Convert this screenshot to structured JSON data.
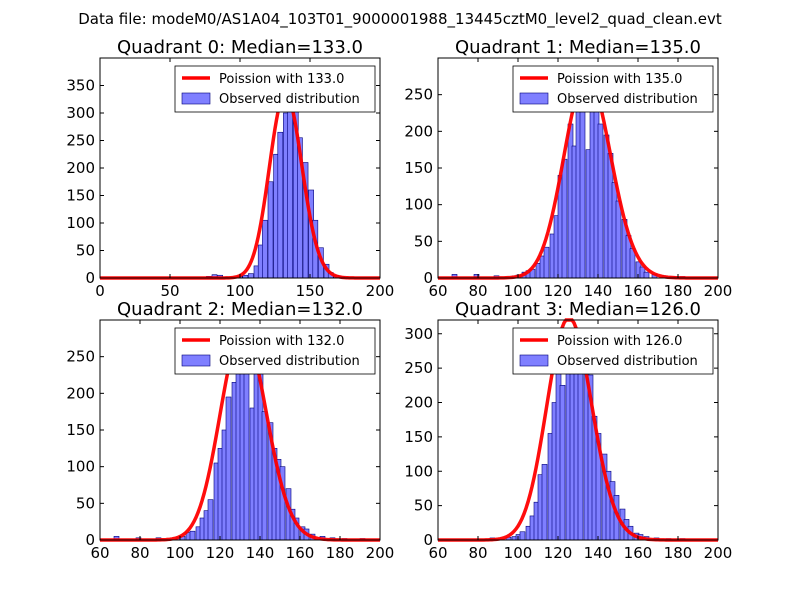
{
  "figure_title": "Data file: modeM0/AS1A04_103T01_9000001988_13445cztM0_level2_quad_clean.evt",
  "colors": {
    "curve": "#ff0000",
    "bar_fill": "#7f7fff",
    "bar_edge": "#00007a",
    "axes": "#000000"
  },
  "chart_data": [
    {
      "type": "bar",
      "title": "Quadrant 0: Median=133.0",
      "median": 133.0,
      "xlim": [
        0,
        200
      ],
      "ylim": [
        0,
        400
      ],
      "xticks": [
        "0",
        "50",
        "100",
        "150",
        "200"
      ],
      "yticks": [
        "0",
        "50",
        "100",
        "150",
        "200",
        "250",
        "300",
        "350"
      ],
      "xtick_values": [
        0,
        50,
        100,
        150,
        200
      ],
      "ytick_values": [
        0,
        50,
        100,
        150,
        200,
        250,
        300,
        350
      ],
      "legend": [
        "Poission with 133.0",
        "Observed distribution"
      ],
      "legend_position": "top-right",
      "bin_width": 3.6,
      "bins": [
        [
          76,
          3
        ],
        [
          80,
          6
        ],
        [
          84,
          5
        ],
        [
          88,
          2
        ],
        [
          94,
          2
        ],
        [
          98,
          3
        ],
        [
          102,
          5
        ],
        [
          106,
          8
        ],
        [
          110,
          22
        ],
        [
          113,
          60
        ],
        [
          116,
          105
        ],
        [
          120,
          175
        ],
        [
          124,
          225
        ],
        [
          127,
          265
        ],
        [
          131,
          300
        ],
        [
          134,
          375
        ],
        [
          138,
          315
        ],
        [
          141,
          255
        ],
        [
          145,
          210
        ],
        [
          149,
          160
        ],
        [
          152,
          105
        ],
        [
          156,
          55
        ],
        [
          160,
          25
        ],
        [
          163,
          10
        ],
        [
          167,
          5
        ],
        [
          171,
          3
        ]
      ]
    },
    {
      "type": "bar",
      "title": "Quadrant 1: Median=135.0",
      "median": 135.0,
      "xlim": [
        60,
        200
      ],
      "ylim": [
        0,
        300
      ],
      "xticks": [
        "60",
        "80",
        "100",
        "120",
        "140",
        "160",
        "180",
        "200"
      ],
      "yticks": [
        "0",
        "50",
        "100",
        "150",
        "200",
        "250"
      ],
      "xtick_values": [
        60,
        80,
        100,
        120,
        140,
        160,
        180,
        200
      ],
      "ytick_values": [
        0,
        50,
        100,
        150,
        200,
        250
      ],
      "legend": [
        "Poission with 135.0",
        "Observed distribution"
      ],
      "legend_position": "top-right",
      "bin_width": 2.5,
      "bins": [
        [
          67,
          5
        ],
        [
          78,
          5
        ],
        [
          88,
          3
        ],
        [
          97,
          3
        ],
        [
          99,
          4
        ],
        [
          102,
          8
        ],
        [
          104,
          10
        ],
        [
          106,
          12
        ],
        [
          109,
          20
        ],
        [
          111,
          30
        ],
        [
          113,
          42
        ],
        [
          116,
          60
        ],
        [
          118,
          85
        ],
        [
          120,
          140
        ],
        [
          122,
          162
        ],
        [
          125,
          210
        ],
        [
          127,
          180
        ],
        [
          129,
          230
        ],
        [
          131,
          280
        ],
        [
          134,
          175
        ],
        [
          136,
          265
        ],
        [
          138,
          245
        ],
        [
          140,
          210
        ],
        [
          143,
          195
        ],
        [
          145,
          170
        ],
        [
          147,
          130
        ],
        [
          149,
          105
        ],
        [
          152,
          80
        ],
        [
          154,
          58
        ],
        [
          156,
          40
        ],
        [
          159,
          22
        ],
        [
          161,
          15
        ],
        [
          163,
          8
        ],
        [
          167,
          5
        ],
        [
          172,
          3
        ],
        [
          176,
          2
        ],
        [
          181,
          2
        ]
      ]
    },
    {
      "type": "bar",
      "title": "Quadrant 2: Median=132.0",
      "median": 132.0,
      "xlim": [
        60,
        200
      ],
      "ylim": [
        0,
        300
      ],
      "xticks": [
        "60",
        "80",
        "100",
        "120",
        "140",
        "160",
        "180",
        "200"
      ],
      "yticks": [
        "0",
        "50",
        "100",
        "150",
        "200",
        "250"
      ],
      "xtick_values": [
        60,
        80,
        100,
        120,
        140,
        160,
        180,
        200
      ],
      "ytick_values": [
        0,
        50,
        100,
        150,
        200,
        250
      ],
      "legend": [
        "Poission with 132.0",
        "Observed distribution"
      ],
      "legend_position": "top-right",
      "bin_width": 2.5,
      "bins": [
        [
          67,
          5
        ],
        [
          78,
          3
        ],
        [
          88,
          3
        ],
        [
          98,
          3
        ],
        [
          100,
          5
        ],
        [
          103,
          10
        ],
        [
          105,
          12
        ],
        [
          108,
          18
        ],
        [
          110,
          30
        ],
        [
          112,
          40
        ],
        [
          114,
          55
        ],
        [
          117,
          105
        ],
        [
          119,
          125
        ],
        [
          121,
          150
        ],
        [
          123,
          195
        ],
        [
          126,
          215
        ],
        [
          128,
          270
        ],
        [
          130,
          280
        ],
        [
          132,
          245
        ],
        [
          135,
          180
        ],
        [
          137,
          250
        ],
        [
          139,
          235
        ],
        [
          141,
          175
        ],
        [
          144,
          160
        ],
        [
          146,
          125
        ],
        [
          148,
          110
        ],
        [
          150,
          100
        ],
        [
          153,
          70
        ],
        [
          155,
          42
        ],
        [
          157,
          30
        ],
        [
          160,
          18
        ],
        [
          162,
          15
        ],
        [
          165,
          8
        ],
        [
          170,
          5
        ],
        [
          175,
          3
        ],
        [
          181,
          2
        ],
        [
          190,
          2
        ]
      ]
    },
    {
      "type": "bar",
      "title": "Quadrant 3: Median=126.0",
      "median": 126.0,
      "xlim": [
        60,
        200
      ],
      "ylim": [
        0,
        320
      ],
      "xticks": [
        "60",
        "80",
        "100",
        "120",
        "140",
        "160",
        "180",
        "200"
      ],
      "yticks": [
        "0",
        "50",
        "100",
        "150",
        "200",
        "250",
        "300"
      ],
      "xtick_values": [
        60,
        80,
        100,
        120,
        140,
        160,
        180,
        200
      ],
      "ytick_values": [
        0,
        50,
        100,
        150,
        200,
        250,
        300
      ],
      "legend": [
        "Poission with 126.0",
        "Observed distribution"
      ],
      "legend_position": "top-right",
      "bin_width": 2.5,
      "bins": [
        [
          86,
          3
        ],
        [
          94,
          4
        ],
        [
          97,
          5
        ],
        [
          99,
          8
        ],
        [
          101,
          12
        ],
        [
          104,
          20
        ],
        [
          106,
          35
        ],
        [
          108,
          55
        ],
        [
          110,
          95
        ],
        [
          112,
          110
        ],
        [
          115,
          155
        ],
        [
          117,
          200
        ],
        [
          119,
          250
        ],
        [
          121,
          225
        ],
        [
          124,
          280
        ],
        [
          126,
          300
        ],
        [
          128,
          250
        ],
        [
          130,
          280
        ],
        [
          133,
          280
        ],
        [
          135,
          240
        ],
        [
          137,
          180
        ],
        [
          139,
          155
        ],
        [
          142,
          125
        ],
        [
          144,
          100
        ],
        [
          146,
          85
        ],
        [
          148,
          65
        ],
        [
          151,
          45
        ],
        [
          153,
          30
        ],
        [
          155,
          20
        ],
        [
          158,
          10
        ],
        [
          160,
          8
        ],
        [
          163,
          5
        ],
        [
          168,
          3
        ],
        [
          174,
          2
        ],
        [
          181,
          2
        ]
      ]
    }
  ]
}
